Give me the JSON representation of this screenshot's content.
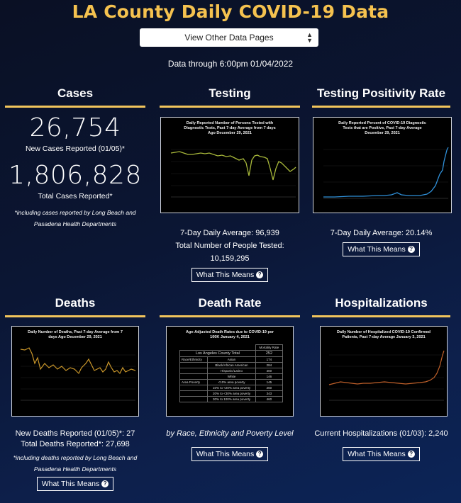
{
  "page": {
    "title": "LA County Daily COVID-19 Data",
    "data_through": "Data through 6:00pm 01/04/2022"
  },
  "nav": {
    "select_label": "View Other Data Pages"
  },
  "cases": {
    "heading": "Cases",
    "new_value": "26,754",
    "new_label": "New Cases Reported (01/05)*",
    "total_value": "1,806,828",
    "total_label": "Total Cases Reported*",
    "note": "*including cases reported by Long Beach and Pasadena Health Departments"
  },
  "testing": {
    "heading": "Testing",
    "chart_title": "Daily Reported Number of Persons Tested with Diagnostic Tests, Past 7-day Average from 7 days Ago December 29, 2021",
    "avg": "7-Day Daily Average: 96,939",
    "total": "Total Number of People Tested: 10,159,295",
    "button": "What This Means"
  },
  "positivity": {
    "heading": "Testing Positivity Rate",
    "chart_title": "Daily Reported Percent of COVID-19 Diagnostic Tests that are Positive, Past 7-day Average December 29, 2021",
    "avg": "7-Day Daily Average: 20.14%",
    "button": "What This Means"
  },
  "deaths": {
    "heading": "Deaths",
    "chart_title": "Daily Number of Deaths, Past 7-day Average from 7 days Ago December 29, 2021",
    "new": "New Deaths Reported (01/05)*: 27",
    "total": "Total Deaths Reported*: 27,698",
    "note": "*including deaths reported by Long Beach and Pasadena Health Departments",
    "button": "What This Means"
  },
  "death_rate": {
    "heading": "Death Rate",
    "chart_title": "Age-Adjusted Death Rates due to COVID-19 per 100K January 4, 2021",
    "table_header": "Mortality Rate",
    "county_label": "Los Angeles County Total",
    "county_value": "252",
    "rows": [
      [
        "Race/Ethnicity",
        "Asian",
        "174"
      ],
      [
        "",
        "Black/African American",
        "284"
      ],
      [
        "",
        "Hispanic/Latino",
        "400"
      ],
      [
        "",
        "White",
        "146"
      ],
      [
        "Area Poverty",
        "<10% area poverty",
        "145"
      ],
      [
        "",
        "10% to <20% area poverty",
        "260"
      ],
      [
        "",
        "20% to <30% area poverty",
        "343"
      ],
      [
        "",
        "30% to 100% area poverty",
        "460"
      ]
    ],
    "caption": "by Race, Ethnicity and Poverty Level",
    "button": "What This Means"
  },
  "hospitalizations": {
    "heading": "Hospitalizations",
    "chart_title": "Daily Number of Hospitalized COVID-19 Confirmed Patients, Past 7-day Average January 3, 2021",
    "current": "Current Hospitalizations (01/03): 2,240",
    "button": "What This Means"
  },
  "colors": {
    "accent": "#f5c24f",
    "rule": "#f2c55c",
    "testing_line": "#a8b83a",
    "positivity_line": "#2f8fd8",
    "deaths_line": "#c9962a",
    "hosp_line": "#c0602a"
  }
}
